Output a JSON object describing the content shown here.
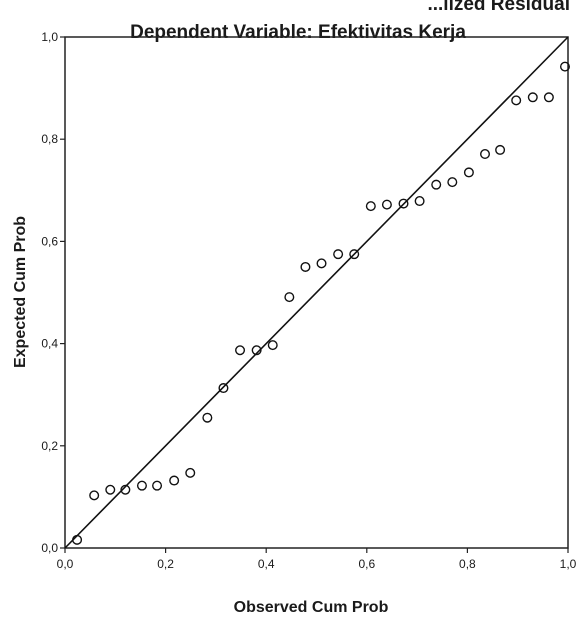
{
  "chart_data": {
    "type": "scatter",
    "title_partial": "...lized Residual",
    "title": "Dependent Variable: Efektivitas Kerja",
    "xlabel": "Observed Cum Prob",
    "ylabel": "Expected Cum Prob",
    "xlim": [
      0.0,
      1.0
    ],
    "ylim": [
      0.0,
      1.0
    ],
    "x_ticks": [
      "0,0",
      "0,2",
      "0,4",
      "0,6",
      "0,8",
      "1,0"
    ],
    "y_ticks": [
      "0,0",
      "0,2",
      "0,4",
      "0,6",
      "0,8",
      "1,0"
    ],
    "grid": false,
    "reference_line": [
      [
        0.0,
        0.0
      ],
      [
        1.0,
        1.0
      ]
    ],
    "points": [
      {
        "x": 0.024,
        "y": 0.016
      },
      {
        "x": 0.058,
        "y": 0.103
      },
      {
        "x": 0.09,
        "y": 0.114
      },
      {
        "x": 0.12,
        "y": 0.114
      },
      {
        "x": 0.153,
        "y": 0.122
      },
      {
        "x": 0.183,
        "y": 0.122
      },
      {
        "x": 0.217,
        "y": 0.132
      },
      {
        "x": 0.249,
        "y": 0.147
      },
      {
        "x": 0.283,
        "y": 0.255
      },
      {
        "x": 0.315,
        "y": 0.313
      },
      {
        "x": 0.348,
        "y": 0.387
      },
      {
        "x": 0.381,
        "y": 0.387
      },
      {
        "x": 0.413,
        "y": 0.397
      },
      {
        "x": 0.446,
        "y": 0.491
      },
      {
        "x": 0.478,
        "y": 0.55
      },
      {
        "x": 0.51,
        "y": 0.557
      },
      {
        "x": 0.543,
        "y": 0.575
      },
      {
        "x": 0.575,
        "y": 0.575
      },
      {
        "x": 0.608,
        "y": 0.669
      },
      {
        "x": 0.64,
        "y": 0.672
      },
      {
        "x": 0.673,
        "y": 0.674
      },
      {
        "x": 0.705,
        "y": 0.679
      },
      {
        "x": 0.738,
        "y": 0.711
      },
      {
        "x": 0.77,
        "y": 0.716
      },
      {
        "x": 0.803,
        "y": 0.735
      },
      {
        "x": 0.835,
        "y": 0.771
      },
      {
        "x": 0.865,
        "y": 0.779
      },
      {
        "x": 0.897,
        "y": 0.876
      },
      {
        "x": 0.93,
        "y": 0.882
      },
      {
        "x": 0.962,
        "y": 0.882
      },
      {
        "x": 0.994,
        "y": 0.942
      }
    ]
  }
}
